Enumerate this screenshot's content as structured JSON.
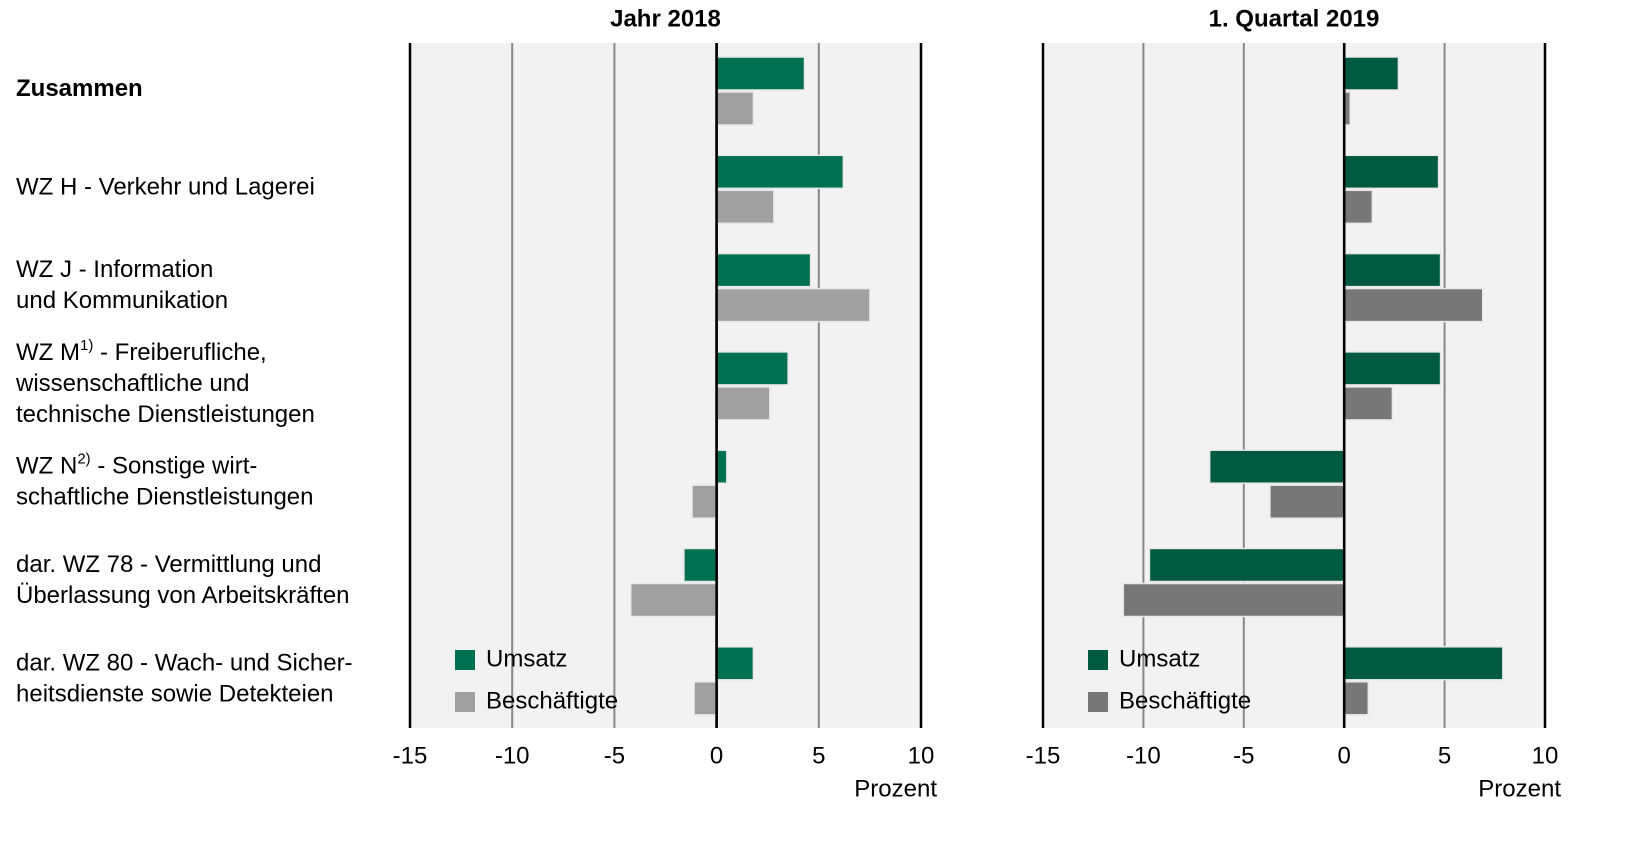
{
  "chart_data": [
    {
      "type": "hbar",
      "title": "Jahr 2018",
      "categories": [
        [
          [
            "Zusammen"
          ]
        ],
        [
          [
            "WZ H - Verkehr und Lagerei"
          ]
        ],
        [
          [
            "WZ J - Information"
          ],
          [
            "und Kommunikation"
          ]
        ],
        [
          [
            "WZ M",
            "1)",
            " - Freiberufliche,"
          ],
          [
            "wissenschaftliche und"
          ],
          [
            "technische Dienstleistungen"
          ]
        ],
        [
          [
            "WZ N",
            "2)",
            " - Sonstige wirt-"
          ],
          [
            "schaftliche Dienstleistungen"
          ]
        ],
        [
          [
            "dar. WZ 78 - Vermittlung und"
          ],
          [
            "Überlassung von Arbeitskräften"
          ]
        ],
        [
          [
            "dar. WZ 80 - Wach- und Sicher-"
          ],
          [
            "heitsdienste sowie Detekteien"
          ]
        ]
      ],
      "series": [
        {
          "name": "Umsatz",
          "color": "#007050",
          "values": [
            4.3,
            6.2,
            4.6,
            3.5,
            0.5,
            -1.6,
            1.8
          ]
        },
        {
          "name": "Beschäftigte",
          "color": "#a0a0a0",
          "values": [
            1.8,
            2.8,
            7.5,
            2.6,
            -1.2,
            -4.2,
            -1.1
          ]
        }
      ],
      "xlim": [
        -15,
        10
      ],
      "xticks": [
        -15,
        -10,
        -5,
        0,
        5,
        10
      ],
      "xlabel": "Prozent",
      "grid": true
    },
    {
      "type": "hbar",
      "title": "1. Quartal 2019",
      "series": [
        {
          "name": "Umsatz",
          "color": "#005a40",
          "values": [
            2.7,
            4.7,
            4.8,
            4.8,
            -6.7,
            -9.7,
            7.9
          ]
        },
        {
          "name": "Beschäftigte",
          "color": "#777777",
          "values": [
            0.3,
            1.4,
            6.9,
            2.4,
            -3.7,
            -11.0,
            1.2
          ]
        }
      ],
      "xlim": [
        -15,
        10
      ],
      "xticks": [
        -15,
        -10,
        -5,
        0,
        5,
        10
      ],
      "xlabel": "Prozent",
      "grid": true
    }
  ]
}
